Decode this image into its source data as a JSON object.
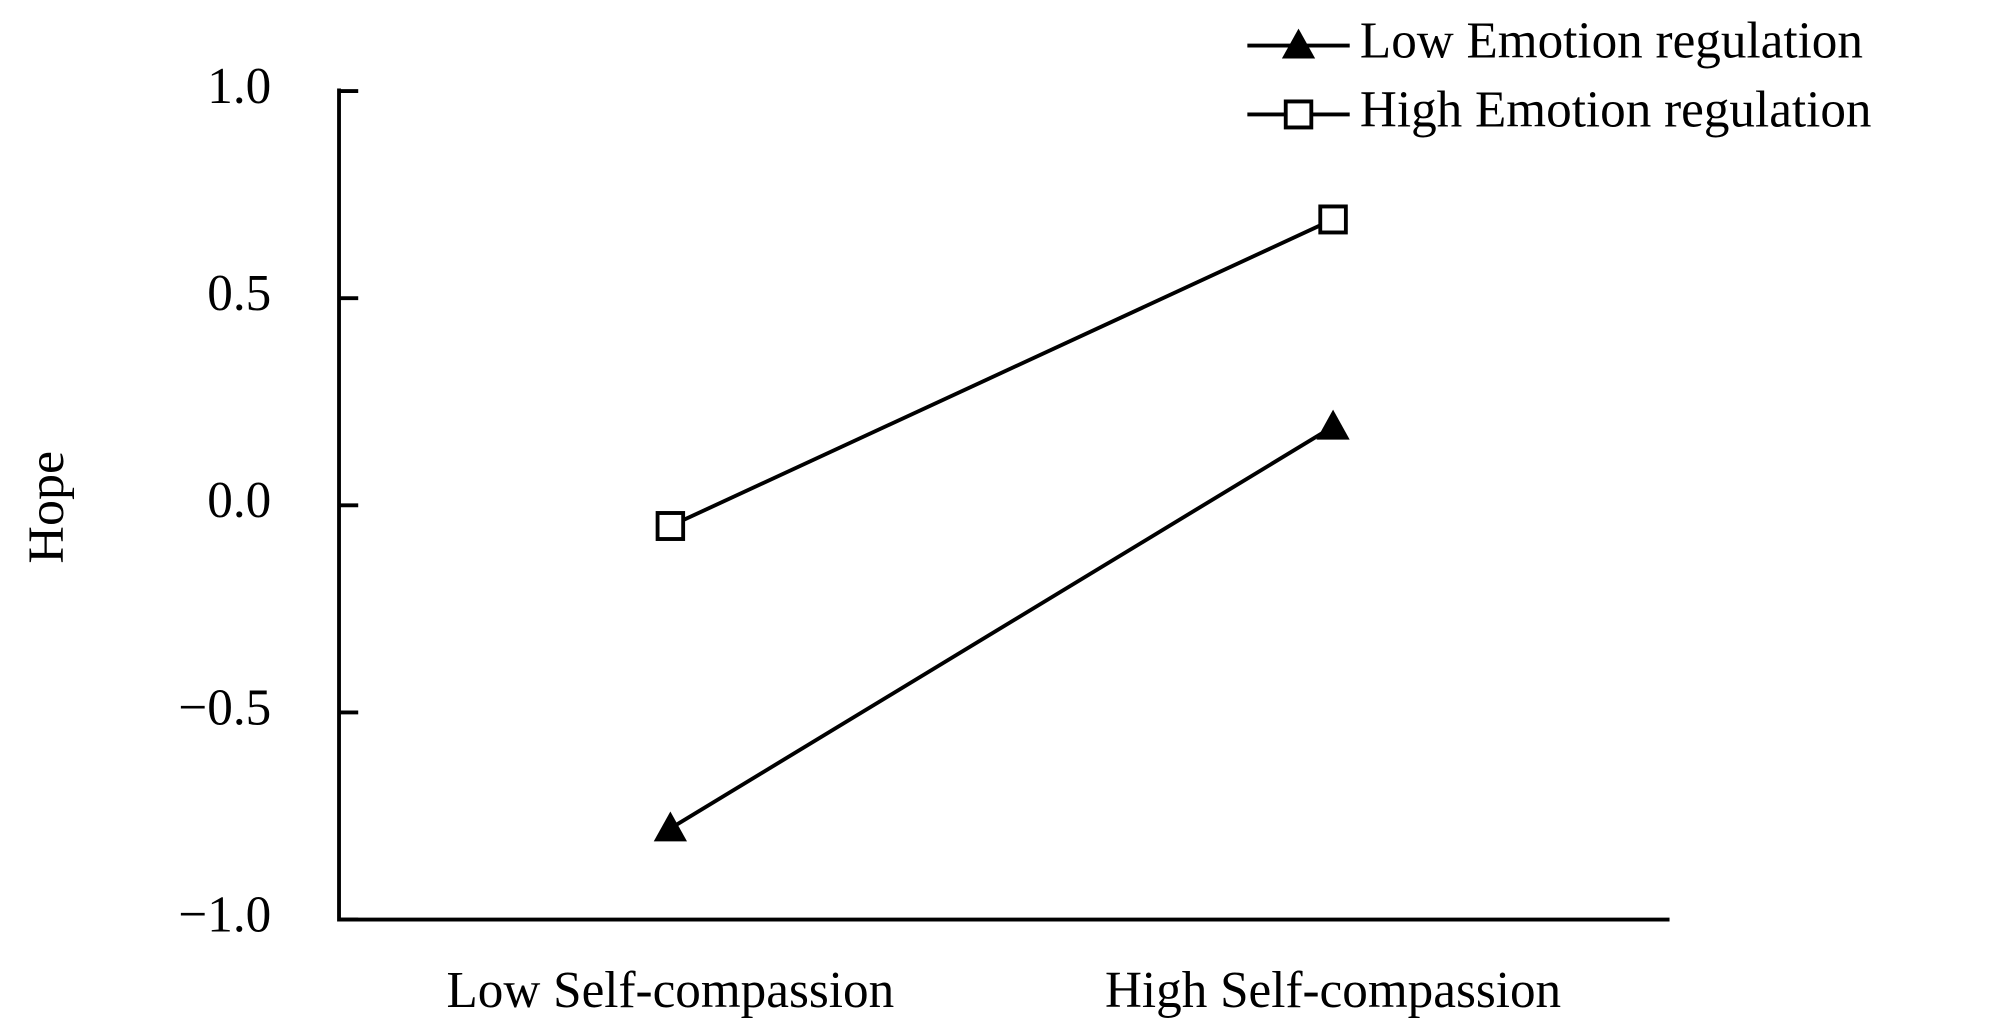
{
  "chart_data": {
    "type": "line",
    "y_label": "Hope",
    "categories": [
      "Low Self-compassion",
      "High  Self-compassion"
    ],
    "series": [
      {
        "name": "Low Emotion regulation",
        "color": "#000000",
        "marker": "filled-triangle",
        "values": [
          -0.78,
          0.19
        ]
      },
      {
        "name": "High Emotion regulation",
        "color": "#000000",
        "marker": "open-square",
        "values": [
          -0.05,
          0.69
        ]
      }
    ],
    "ylim": [
      -1,
      1
    ],
    "yticks": [
      {
        "value": -1,
        "label": "−1.0"
      },
      {
        "value": -0.5,
        "label": "−0.5"
      },
      {
        "value": 0,
        "label": "0.0"
      },
      0.5,
      {
        "value": 1,
        "label": "1.0"
      }
    ],
    "legend": "top-right"
  }
}
